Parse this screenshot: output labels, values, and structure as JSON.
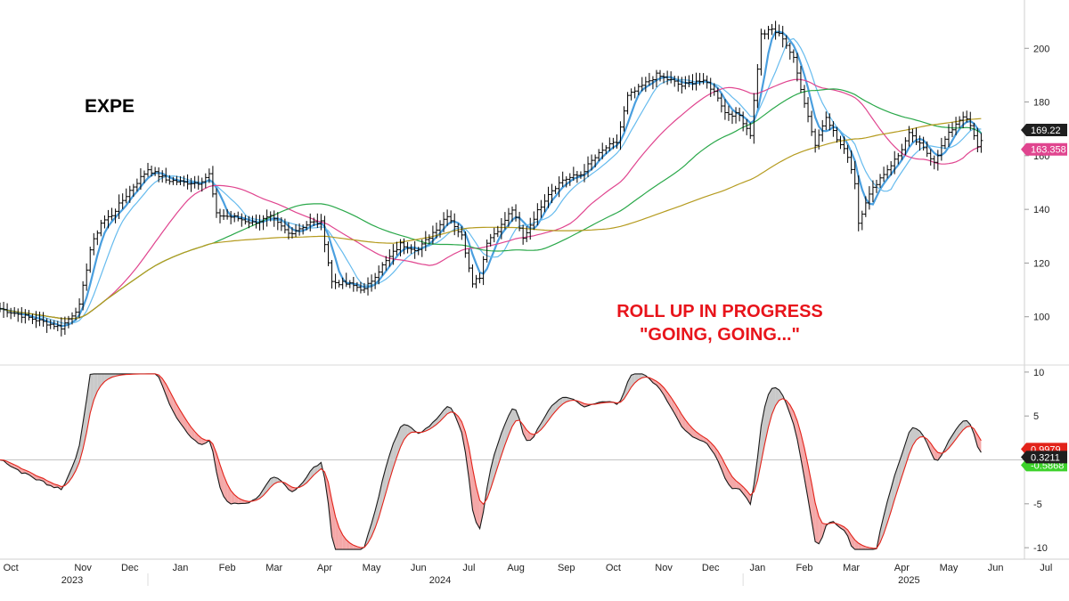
{
  "chart_data": [
    {
      "type": "ohlc",
      "title": "EXPE",
      "y_axis_side": "right",
      "ylim": [
        82,
        218
      ],
      "y_ticks": [
        100,
        120,
        140,
        160,
        180,
        200
      ],
      "price_anchors": [
        {
          "x": 0,
          "y": 103
        },
        {
          "x": 12,
          "y": 98
        },
        {
          "x": 17,
          "y": 96
        },
        {
          "x": 22,
          "y": 104
        },
        {
          "x": 25,
          "y": 125
        },
        {
          "x": 28,
          "y": 135
        },
        {
          "x": 31,
          "y": 138
        },
        {
          "x": 36,
          "y": 147
        },
        {
          "x": 41,
          "y": 155
        },
        {
          "x": 46,
          "y": 151
        },
        {
          "x": 51,
          "y": 150
        },
        {
          "x": 55,
          "y": 150
        },
        {
          "x": 58,
          "y": 153
        },
        {
          "x": 60,
          "y": 138
        },
        {
          "x": 65,
          "y": 137
        },
        {
          "x": 70,
          "y": 135
        },
        {
          "x": 75,
          "y": 137
        },
        {
          "x": 80,
          "y": 131
        },
        {
          "x": 86,
          "y": 135
        },
        {
          "x": 89,
          "y": 135
        },
        {
          "x": 92,
          "y": 113
        },
        {
          "x": 97,
          "y": 112
        },
        {
          "x": 101,
          "y": 110
        },
        {
          "x": 106,
          "y": 119
        },
        {
          "x": 111,
          "y": 127
        },
        {
          "x": 116,
          "y": 125
        },
        {
          "x": 121,
          "y": 133
        },
        {
          "x": 124,
          "y": 138
        },
        {
          "x": 128,
          "y": 130
        },
        {
          "x": 131,
          "y": 113
        },
        {
          "x": 133,
          "y": 115
        },
        {
          "x": 135,
          "y": 128
        },
        {
          "x": 139,
          "y": 134
        },
        {
          "x": 142,
          "y": 140
        },
        {
          "x": 145,
          "y": 129
        },
        {
          "x": 148,
          "y": 137
        },
        {
          "x": 152,
          "y": 146
        },
        {
          "x": 156,
          "y": 151
        },
        {
          "x": 161,
          "y": 153
        },
        {
          "x": 164,
          "y": 158
        },
        {
          "x": 168,
          "y": 163
        },
        {
          "x": 171,
          "y": 165
        },
        {
          "x": 174,
          "y": 182
        },
        {
          "x": 178,
          "y": 186
        },
        {
          "x": 182,
          "y": 190
        },
        {
          "x": 186,
          "y": 188
        },
        {
          "x": 189,
          "y": 186
        },
        {
          "x": 193,
          "y": 188
        },
        {
          "x": 196,
          "y": 187
        },
        {
          "x": 199,
          "y": 182
        },
        {
          "x": 201,
          "y": 176
        },
        {
          "x": 205,
          "y": 175
        },
        {
          "x": 208,
          "y": 168
        },
        {
          "x": 211,
          "y": 205
        },
        {
          "x": 214,
          "y": 207
        },
        {
          "x": 217,
          "y": 204
        },
        {
          "x": 220,
          "y": 196
        },
        {
          "x": 223,
          "y": 180
        },
        {
          "x": 226,
          "y": 164
        },
        {
          "x": 229,
          "y": 175
        },
        {
          "x": 232,
          "y": 166
        },
        {
          "x": 235,
          "y": 160
        },
        {
          "x": 237,
          "y": 150
        },
        {
          "x": 238,
          "y": 135
        },
        {
          "x": 240,
          "y": 143
        },
        {
          "x": 243,
          "y": 150
        },
        {
          "x": 246,
          "y": 155
        },
        {
          "x": 249,
          "y": 160
        },
        {
          "x": 252,
          "y": 168
        },
        {
          "x": 255,
          "y": 164
        },
        {
          "x": 259,
          "y": 158
        },
        {
          "x": 262,
          "y": 166
        },
        {
          "x": 265,
          "y": 172
        },
        {
          "x": 267,
          "y": 175
        },
        {
          "x": 269,
          "y": 171
        },
        {
          "x": 271,
          "y": 163
        },
        {
          "x": 272,
          "y": 166
        }
      ],
      "moving_averages": [
        {
          "color": "#4a9fdf",
          "period": 5
        },
        {
          "color": "#66bbee",
          "period": 10
        },
        {
          "color": "#e0458f",
          "period": 30
        },
        {
          "color": "#2aa84a",
          "period": 60
        },
        {
          "color": "#b59b1f",
          "period": 110
        }
      ],
      "last_labels": [
        {
          "text": "169.22",
          "value": 169.22,
          "color": "#1f1f1f",
          "text_color": "#ffffff"
        },
        {
          "text": "163.358",
          "value": 163.358,
          "color": "#e0458f",
          "text_color": "#ffffff"
        }
      ]
    },
    {
      "type": "oscillator",
      "ylim": [
        -11,
        10.8
      ],
      "y_ticks": [
        10,
        5,
        0,
        -5,
        -10
      ],
      "fast_color": "#1a1a1a",
      "slow_color": "#e2231a",
      "fill_up_color": "#c9c9c9",
      "fill_down_color": "#f4a8a8",
      "last_labels": [
        {
          "text": "0.9979",
          "value": 0.9979,
          "color": "#e2231a",
          "text_color": "#ffffff"
        },
        {
          "text": "0.3211",
          "value": 0.3211,
          "color": "#1f1f1f",
          "text_color": "#ffffff"
        },
        {
          "text": "-0.5868",
          "value": -0.5868,
          "color": "#3dd22b",
          "text_color": "#ffffff"
        }
      ]
    }
  ],
  "x_axis": {
    "total_weeks": 284,
    "months": [
      {
        "label": "Oct",
        "x": 3
      },
      {
        "label": "Nov",
        "x": 23
      },
      {
        "label": "Dec",
        "x": 36
      },
      {
        "label": "Jan",
        "x": 50
      },
      {
        "label": "Feb",
        "x": 63
      },
      {
        "label": "Mar",
        "x": 76
      },
      {
        "label": "Apr",
        "x": 90
      },
      {
        "label": "May",
        "x": 103
      },
      {
        "label": "Jun",
        "x": 116
      },
      {
        "label": "Jul",
        "x": 130
      },
      {
        "label": "Aug",
        "x": 143
      },
      {
        "label": "Sep",
        "x": 157
      },
      {
        "label": "Oct",
        "x": 170
      },
      {
        "label": "Nov",
        "x": 184
      },
      {
        "label": "Dec",
        "x": 197
      },
      {
        "label": "Jan",
        "x": 210
      },
      {
        "label": "Feb",
        "x": 223
      },
      {
        "label": "Mar",
        "x": 236
      },
      {
        "label": "Apr",
        "x": 250
      },
      {
        "label": "May",
        "x": 263
      },
      {
        "label": "Jun",
        "x": 276
      },
      {
        "label": "Jul",
        "x": 290
      }
    ],
    "years": [
      {
        "label": "2023",
        "x": 20
      },
      {
        "label": "2024",
        "x": 122
      },
      {
        "label": "2025",
        "x": 252
      }
    ]
  },
  "annotations": {
    "ticker": "EXPE",
    "note_line1": "ROLL UP IN PROGRESS",
    "note_line2": "\"GOING, GOING...\""
  },
  "colors": {
    "background": "#ffffff",
    "axis": "#cccccc",
    "price_bars": "#000000",
    "note_text": "#e8141b"
  }
}
